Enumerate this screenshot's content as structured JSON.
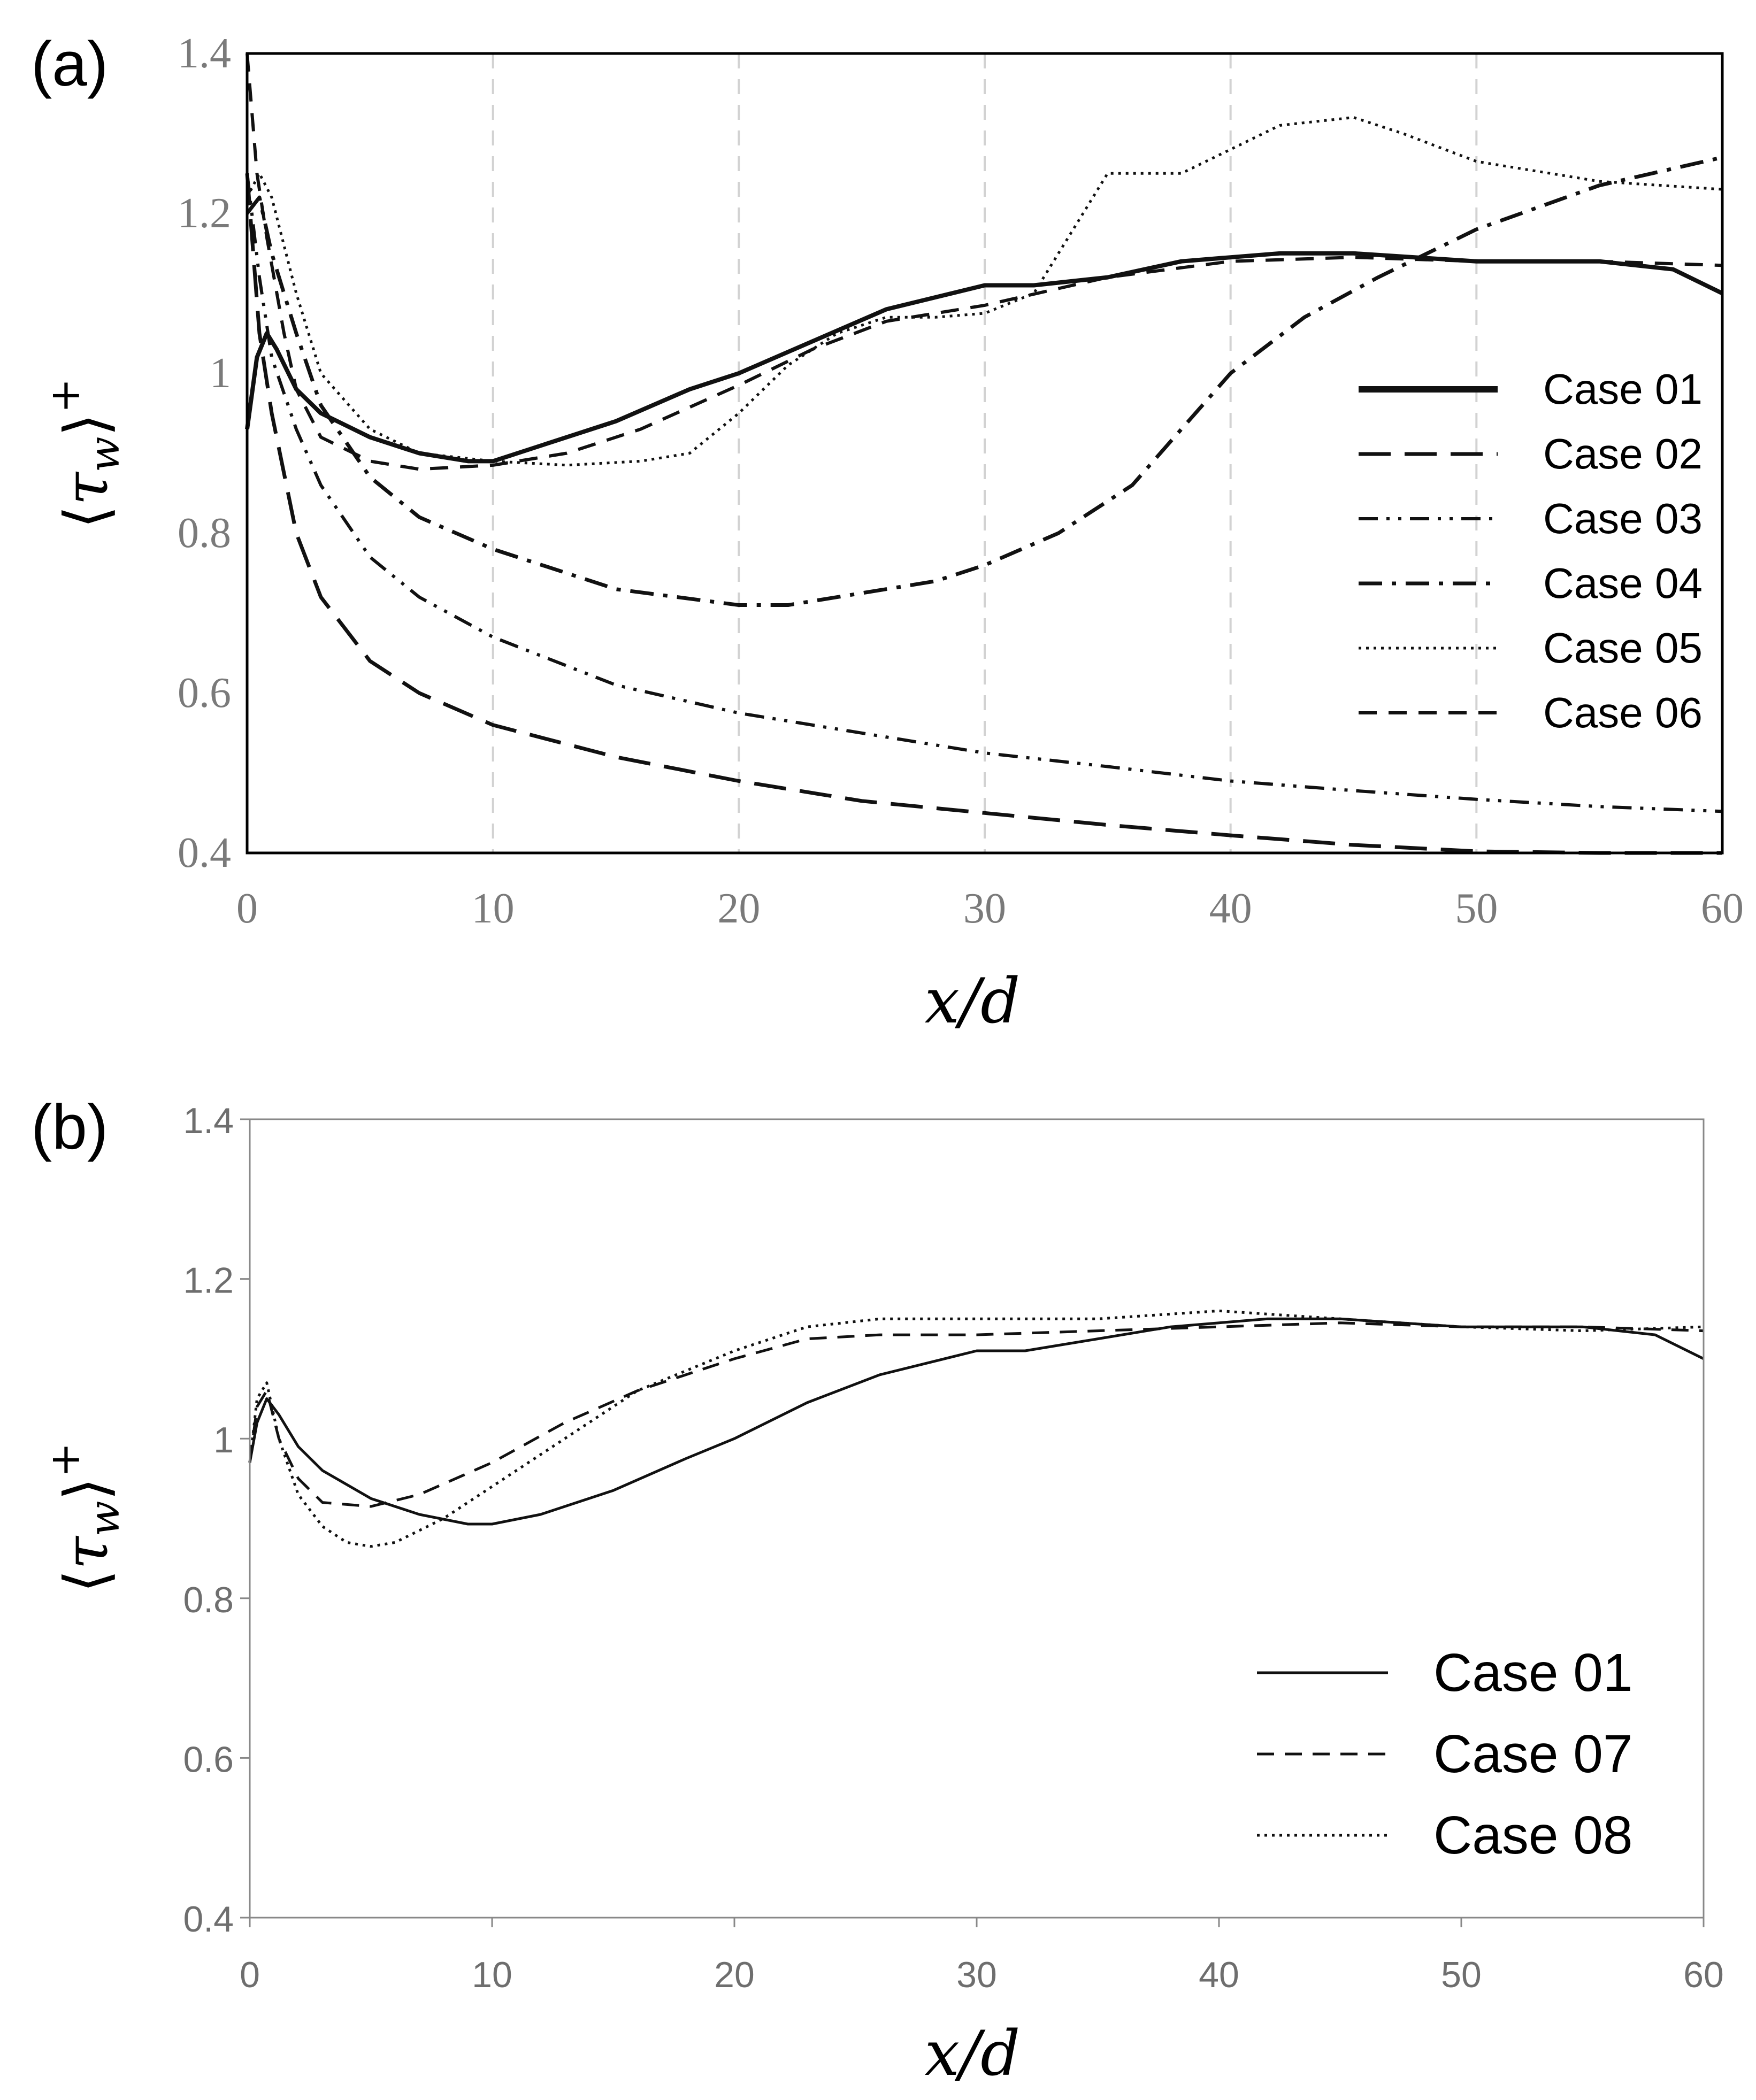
{
  "chart_data": [
    {
      "panel_label": "(a)",
      "type": "line",
      "xlabel": "x/d",
      "ylabel": "⟨τw⟩+",
      "xlim": [
        0,
        60
      ],
      "ylim": [
        0.4,
        1.4
      ],
      "xticks": [
        "0",
        "10",
        "20",
        "30",
        "40",
        "50",
        "60"
      ],
      "yticks": [
        "0.4",
        "0.6",
        "0.8",
        "1",
        "1.2",
        "1.4"
      ],
      "grid": "vertical dashed at x = 10, 20, 30, 40, 50",
      "legend_position": "right",
      "series": [
        {
          "name": "Case 01",
          "style": "solid-thick",
          "x": [
            0,
            0.4,
            0.8,
            1.2,
            2,
            3,
            5,
            7,
            9,
            10,
            12,
            15,
            18,
            20,
            23,
            26,
            30,
            32,
            35,
            38,
            40,
            42,
            45,
            50,
            55,
            58,
            60
          ],
          "y": [
            0.93,
            1.02,
            1.05,
            1.03,
            0.98,
            0.95,
            0.92,
            0.9,
            0.89,
            0.89,
            0.91,
            0.94,
            0.98,
            1.0,
            1.04,
            1.08,
            1.11,
            1.11,
            1.12,
            1.14,
            1.145,
            1.15,
            1.15,
            1.14,
            1.14,
            1.13,
            1.1
          ]
        },
        {
          "name": "Case 02",
          "style": "long-dash",
          "x": [
            0,
            0.5,
            1,
            2,
            3,
            5,
            7,
            10,
            15,
            20,
            25,
            30,
            35,
            40,
            45,
            50,
            55,
            60
          ],
          "y": [
            1.25,
            1.05,
            0.95,
            0.8,
            0.72,
            0.64,
            0.6,
            0.56,
            0.52,
            0.49,
            0.465,
            0.45,
            0.435,
            0.422,
            0.41,
            0.402,
            0.398,
            0.395
          ]
        },
        {
          "name": "Case 03",
          "style": "dash-dot-dot",
          "x": [
            0,
            0.5,
            1,
            2,
            3,
            5,
            7,
            10,
            15,
            20,
            25,
            30,
            35,
            40,
            45,
            50,
            55,
            60
          ],
          "y": [
            1.25,
            1.12,
            1.02,
            0.93,
            0.86,
            0.77,
            0.72,
            0.67,
            0.61,
            0.575,
            0.55,
            0.525,
            0.508,
            0.49,
            0.478,
            0.467,
            0.458,
            0.452
          ]
        },
        {
          "name": "Case 04",
          "style": "dash-dot",
          "x": [
            0,
            0.5,
            1,
            2,
            3,
            5,
            7,
            10,
            15,
            20,
            22,
            25,
            28,
            30,
            33,
            36,
            38,
            40,
            43,
            46,
            50,
            55,
            60
          ],
          "y": [
            1.2,
            1.22,
            1.15,
            1.05,
            0.96,
            0.87,
            0.82,
            0.78,
            0.73,
            0.71,
            0.71,
            0.725,
            0.74,
            0.76,
            0.8,
            0.86,
            0.93,
            1.0,
            1.07,
            1.12,
            1.18,
            1.235,
            1.27
          ]
        },
        {
          "name": "Case 05",
          "style": "dotted",
          "x": [
            0,
            0.5,
            1,
            2,
            3,
            5,
            7,
            10,
            13,
            16,
            18,
            20,
            22,
            24,
            26,
            28,
            30,
            32,
            34,
            35,
            36,
            38,
            40,
            42,
            45,
            47,
            50,
            55,
            60
          ],
          "y": [
            1.22,
            1.25,
            1.22,
            1.1,
            1.0,
            0.93,
            0.9,
            0.89,
            0.885,
            0.89,
            0.9,
            0.95,
            1.01,
            1.05,
            1.07,
            1.07,
            1.075,
            1.1,
            1.2,
            1.25,
            1.25,
            1.25,
            1.28,
            1.31,
            1.32,
            1.3,
            1.265,
            1.24,
            1.23
          ]
        },
        {
          "name": "Case 06",
          "style": "medium-dash",
          "x": [
            0,
            0.4,
            0.8,
            1.5,
            2,
            3,
            5,
            7,
            10,
            13,
            16,
            20,
            23,
            26,
            30,
            35,
            40,
            45,
            50,
            55,
            60
          ],
          "y": [
            1.4,
            1.25,
            1.17,
            1.05,
            0.98,
            0.92,
            0.89,
            0.88,
            0.885,
            0.9,
            0.93,
            0.985,
            1.03,
            1.065,
            1.085,
            1.12,
            1.14,
            1.145,
            1.14,
            1.14,
            1.135
          ]
        }
      ]
    },
    {
      "panel_label": "(b)",
      "type": "line",
      "xlabel": "x/d",
      "ylabel": "⟨τw⟩+",
      "xlim": [
        0,
        60
      ],
      "ylim": [
        0.4,
        1.4
      ],
      "xticks": [
        "0",
        "10",
        "20",
        "30",
        "40",
        "50",
        "60"
      ],
      "yticks": [
        "0.4",
        "0.6",
        "0.8",
        "1",
        "1.2",
        "1.4"
      ],
      "grid": "none",
      "legend_position": "bottom-right",
      "series": [
        {
          "name": "Case 01",
          "style": "solid",
          "x": [
            0,
            0.3,
            0.7,
            1.2,
            2,
            3,
            5,
            7,
            9,
            10,
            12,
            15,
            18,
            20,
            23,
            26,
            30,
            32,
            35,
            38,
            40,
            42,
            45,
            50,
            55,
            58,
            60
          ],
          "y": [
            0.97,
            1.02,
            1.05,
            1.03,
            0.99,
            0.96,
            0.925,
            0.905,
            0.893,
            0.893,
            0.905,
            0.935,
            0.975,
            1.0,
            1.045,
            1.08,
            1.11,
            1.11,
            1.125,
            1.14,
            1.145,
            1.15,
            1.15,
            1.14,
            1.14,
            1.13,
            1.1
          ]
        },
        {
          "name": "Case 07",
          "style": "dashed",
          "x": [
            0,
            0.3,
            0.7,
            1.2,
            2,
            3,
            5,
            7,
            10,
            13,
            16,
            20,
            23,
            26,
            30,
            35,
            40,
            45,
            50,
            55,
            60
          ],
          "y": [
            0.97,
            1.04,
            1.06,
            1.0,
            0.95,
            0.92,
            0.915,
            0.93,
            0.97,
            1.02,
            1.06,
            1.1,
            1.125,
            1.13,
            1.13,
            1.135,
            1.14,
            1.145,
            1.14,
            1.14,
            1.135
          ]
        },
        {
          "name": "Case 08",
          "style": "dotted",
          "x": [
            0,
            0.3,
            0.7,
            1.2,
            2,
            3,
            4,
            5,
            6,
            8,
            10,
            13,
            16,
            20,
            23,
            26,
            30,
            35,
            40,
            45,
            50,
            55,
            60
          ],
          "y": [
            0.97,
            1.05,
            1.07,
            1.0,
            0.93,
            0.89,
            0.87,
            0.865,
            0.87,
            0.9,
            0.94,
            1.0,
            1.06,
            1.11,
            1.14,
            1.15,
            1.15,
            1.15,
            1.16,
            1.15,
            1.14,
            1.135,
            1.14
          ]
        }
      ]
    }
  ]
}
